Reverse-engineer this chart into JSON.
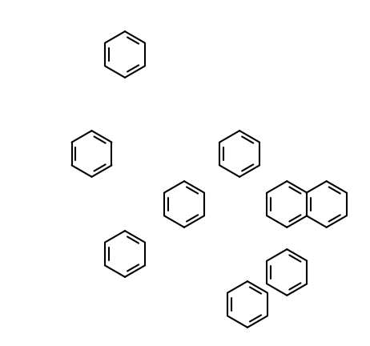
{
  "background_color": "#ffffff",
  "line_color": "#000000",
  "line_width": 1.5,
  "figsize": [
    4.62,
    4.32
  ],
  "dpi": 100,
  "xlim": [
    -0.5,
    10.0
  ],
  "ylim": [
    -0.3,
    9.3
  ]
}
